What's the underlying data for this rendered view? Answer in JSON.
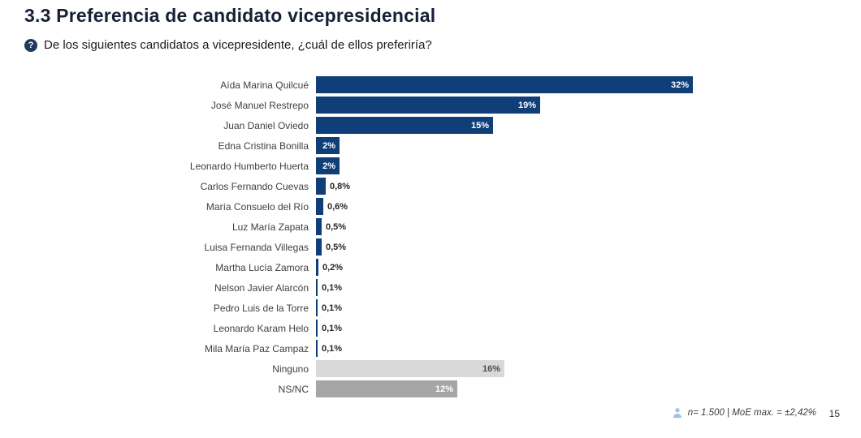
{
  "header": {
    "title": "3.3 Preferencia de candidato vicepresidencial",
    "question": "De los siguientes candidatos a vicepresidente, ¿cuál de ellos preferiría?",
    "question_icon": "question-mark-circle"
  },
  "chart_data": {
    "type": "bar",
    "orientation": "horizontal",
    "title": "3.3 Preferencia de candidato vicepresidencial",
    "xlabel": "",
    "ylabel": "",
    "xlim": [
      0,
      33
    ],
    "grid": false,
    "legend": false,
    "categories": [
      "Aída Marina Quilcué",
      "José Manuel Restrepo",
      "Juan Daniel Oviedo",
      "Edna Cristina Bonilla",
      "Leonardo Humberto Huerta",
      "Carlos Fernando Cuevas",
      "María Consuelo del Río",
      "Luz María Zapata",
      "Luisa Fernanda Villegas",
      "Martha Lucía Zamora",
      "Nelson Javier Alarcón",
      "Pedro Luis de la Torre",
      "Leonardo Karam Helo",
      "Mila María Paz Campaz",
      "Ninguno",
      "NS/NC"
    ],
    "values": [
      32,
      19,
      15,
      2,
      2,
      0.8,
      0.6,
      0.5,
      0.5,
      0.2,
      0.1,
      0.1,
      0.1,
      0.1,
      16,
      12
    ],
    "value_labels": [
      "32%",
      "19%",
      "15%",
      "2%",
      "2%",
      "0,8%",
      "0,6%",
      "0,5%",
      "0,5%",
      "0,2%",
      "0,1%",
      "0,1%",
      "0,1%",
      "0,1%",
      "16%",
      "12%"
    ],
    "bar_styles": [
      "navy",
      "navy",
      "navy",
      "navy",
      "navy",
      "navy",
      "navy",
      "navy",
      "navy",
      "navy",
      "navy",
      "navy",
      "navy",
      "navy",
      "light",
      "mid"
    ],
    "label_positions": [
      "inside",
      "inside",
      "inside",
      "inside",
      "inside",
      "outside",
      "outside",
      "outside",
      "outside",
      "outside",
      "outside",
      "outside",
      "outside",
      "outside",
      "inside",
      "inside"
    ],
    "inside_label_colors": [
      "white",
      "white",
      "white",
      "white",
      "white",
      "",
      "",
      "",
      "",
      "",
      "",
      "",
      "",
      "",
      "dark",
      "white"
    ]
  },
  "colors": {
    "bar_navy": "#0f3e78",
    "bar_light_gray": "#d9d9d9",
    "bar_mid_gray": "#a6a6a6",
    "title_navy": "#172036",
    "person_icon_blue": "#9dc3e6"
  },
  "footer": {
    "sample_note": "n= 1.500 | MoE max. = ±2,42%",
    "page_number": "15"
  }
}
